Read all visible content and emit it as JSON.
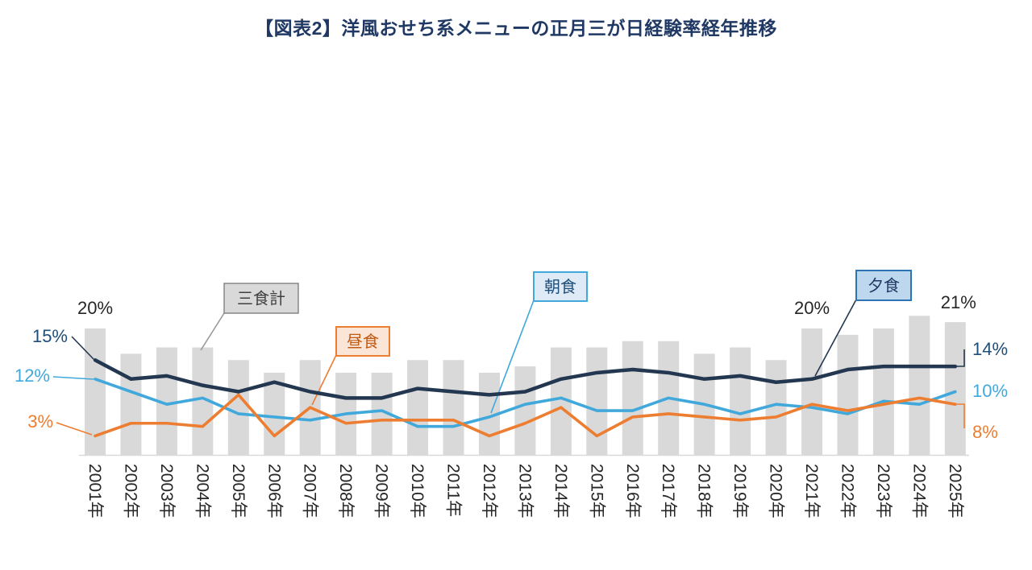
{
  "title": "【図表2】洋風おせち系メニューの正月三が日経験率経年推移",
  "chart_data": {
    "type": "bar+line combo",
    "title": "【図表2】洋風おせち系メニューの正月三が日経験率経年推移",
    "xlabel": "",
    "ylabel": "",
    "ylim": [
      0,
      24
    ],
    "y_axis_visible": false,
    "gridlines": false,
    "legend_position": "callout-labels",
    "x_labels_rotation": "vertical",
    "categories": [
      "2001年",
      "2002年",
      "2003年",
      "2004年",
      "2005年",
      "2006年",
      "2007年",
      "2008年",
      "2009年",
      "2010年",
      "2011年",
      "2012年",
      "2013年",
      "2014年",
      "2015年",
      "2016年",
      "2017年",
      "2018年",
      "2019年",
      "2020年",
      "2021年",
      "2022年",
      "2023年",
      "2024年",
      "2025年"
    ],
    "series": [
      {
        "key": "total",
        "name": "三食計",
        "type": "bar",
        "color": "#D9D9D9",
        "values": [
          20,
          16,
          17,
          17,
          15,
          13,
          15,
          13,
          13,
          15,
          15,
          13,
          14,
          17,
          17,
          18,
          18,
          16,
          17,
          15,
          20,
          19,
          20,
          22,
          21
        ]
      },
      {
        "key": "breakfast",
        "name": "朝食",
        "type": "line",
        "color": "#41A8DC",
        "values": [
          12,
          10,
          8,
          9,
          6.5,
          6,
          5.5,
          6.5,
          7,
          4.5,
          4.5,
          6,
          8,
          9,
          7,
          7,
          9,
          8,
          6.5,
          8,
          7.5,
          6.5,
          8.5,
          8,
          10
        ]
      },
      {
        "key": "lunch",
        "name": "昼食",
        "type": "line",
        "color": "#ED7D31",
        "values": [
          3,
          5,
          5,
          4.5,
          9.5,
          3,
          7.5,
          5,
          5.5,
          5.5,
          5.5,
          3,
          5,
          7.5,
          3,
          6,
          6.5,
          6,
          5.5,
          6,
          8,
          7,
          8,
          9,
          8
        ]
      },
      {
        "key": "dinner",
        "name": "夕食",
        "type": "line",
        "color": "#233750",
        "values": [
          15,
          12,
          12.5,
          11,
          10,
          11.5,
          10,
          9,
          9,
          10.5,
          10,
          9.5,
          10,
          12,
          13,
          13.5,
          13,
          12,
          12.5,
          11.5,
          12,
          13.5,
          14,
          14,
          14
        ]
      }
    ],
    "annotations": [
      {
        "id": "total-2001",
        "series": "total",
        "text": "20%"
      },
      {
        "id": "dinner-2001",
        "series": "dinner",
        "text": "15%"
      },
      {
        "id": "breakfast-2001",
        "series": "breakfast",
        "text": "12%"
      },
      {
        "id": "lunch-2001",
        "series": "lunch",
        "text": "3%"
      },
      {
        "id": "total-2021",
        "series": "total",
        "text": "20%"
      },
      {
        "id": "total-2025",
        "series": "total",
        "text": "21%"
      },
      {
        "id": "dinner-2025",
        "series": "dinner",
        "text": "14%"
      },
      {
        "id": "breakfast-2025",
        "series": "breakfast",
        "text": "10%"
      },
      {
        "id": "lunch-2025",
        "series": "lunch",
        "text": "8%"
      }
    ],
    "colors": {
      "title": "#1F3864",
      "axis_labels": "#262626",
      "annotation_total": "#262626",
      "annotation_dinner": "#1F4E79",
      "annotation_breakfast": "#41A8DC",
      "annotation_lunch": "#ED7D31",
      "legend_total_bg": "#D9D9D9",
      "legend_lunch_bg": "#FBE5D6",
      "legend_breakfast_bg": "#DEEBF7",
      "legend_dinner_bg": "#BDD7EE"
    }
  }
}
